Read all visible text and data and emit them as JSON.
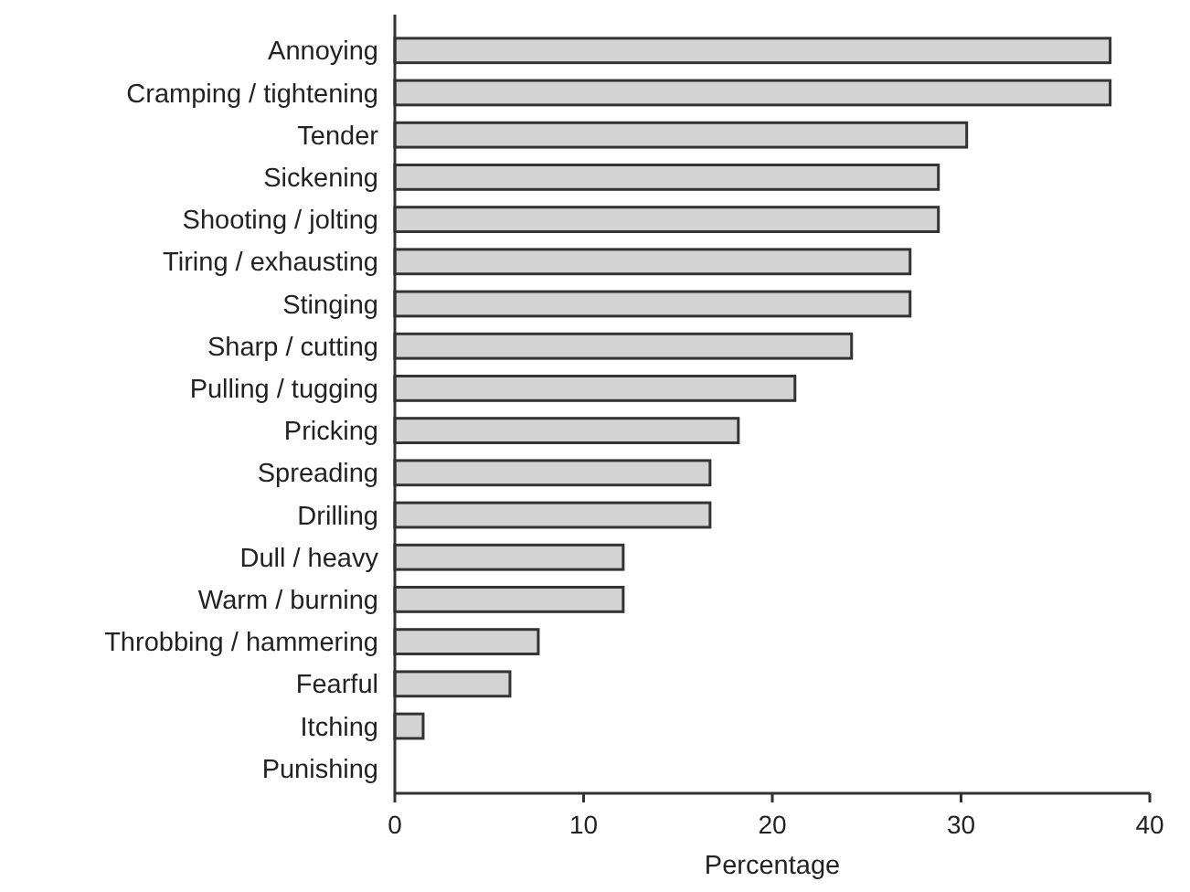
{
  "chart_data": {
    "type": "bar",
    "orientation": "horizontal",
    "xlabel": "Percentage",
    "categories": [
      "Annoying",
      "Cramping / tightening",
      "Tender",
      "Sickening",
      "Shooting / jolting",
      "Tiring / exhausting",
      "Stinging",
      "Sharp / cutting",
      "Pulling / tugging",
      "Pricking",
      "Spreading",
      "Drilling",
      "Dull / heavy",
      "Warm / burning",
      "Throbbing / hammering",
      "Fearful",
      "Itching",
      "Punishing"
    ],
    "values": [
      37.9,
      37.9,
      30.3,
      28.8,
      28.8,
      27.3,
      27.3,
      24.2,
      21.2,
      18.2,
      16.7,
      16.7,
      12.1,
      12.1,
      7.6,
      6.1,
      1.5,
      0
    ],
    "color": "#d3d3d3",
    "xlim": [
      0,
      40
    ],
    "xticks": [
      0,
      10,
      20,
      30,
      40
    ],
    "grid": false
  }
}
